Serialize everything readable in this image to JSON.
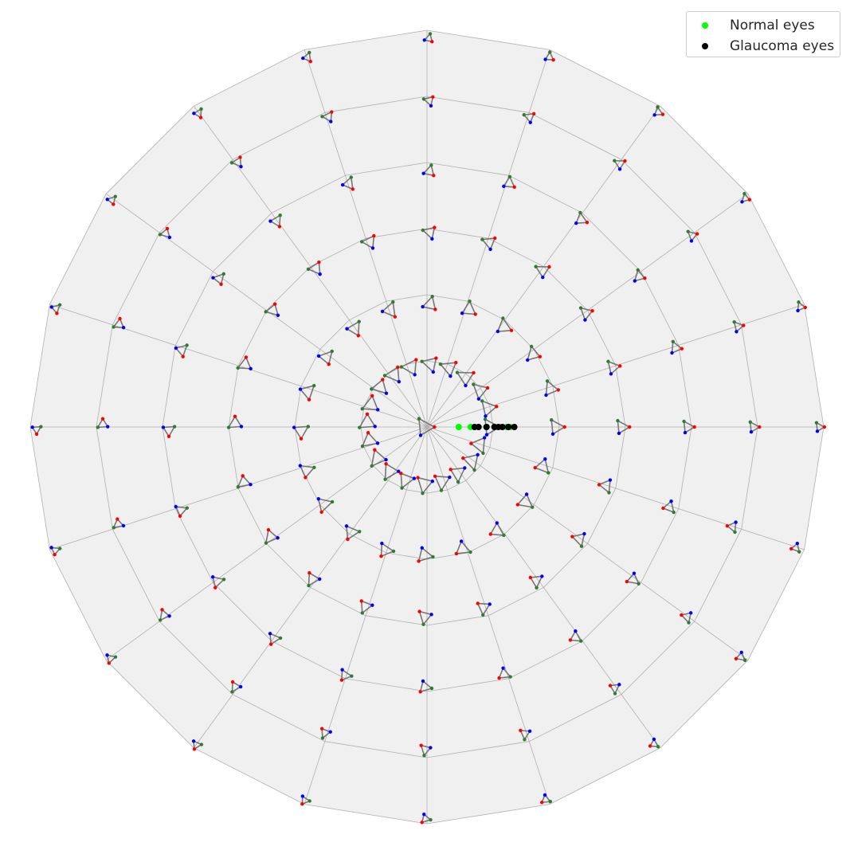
{
  "chart_data": {
    "type": "scatter",
    "projection": "polar",
    "background_color": "#f0f0f0",
    "grid": true,
    "grid_color": "#b0b0b0",
    "ring_count": 6,
    "spoke_count": 20,
    "legend_placement": "top-right",
    "series": [
      {
        "name": "Normal eyes",
        "color": "#00ff00",
        "points": [
          [
            0.08,
            0
          ],
          [
            0.11,
            0
          ],
          [
            0.15,
            0
          ],
          [
            0.2,
            0
          ],
          [
            0.21,
            0
          ]
        ]
      },
      {
        "name": "Glaucoma eyes",
        "color": "#000000",
        "points": [
          [
            0.12,
            0
          ],
          [
            0.13,
            0
          ],
          [
            0.15,
            0
          ],
          [
            0.17,
            0
          ],
          [
            0.18,
            0
          ],
          [
            0.19,
            0
          ],
          [
            0.205,
            0
          ],
          [
            0.22,
            0
          ]
        ]
      }
    ],
    "triangle_glyphs": {
      "vertex_colors": {
        "a": "#2e7d32",
        "b": "#ff0000",
        "c": "#0000ff"
      },
      "edge_color": "#777777",
      "center_vertex": {
        "a": [
          0,
          0.03
        ],
        "b": [
          0.05,
          0
        ],
        "c": [
          0,
          -0.03
        ]
      }
    }
  }
}
